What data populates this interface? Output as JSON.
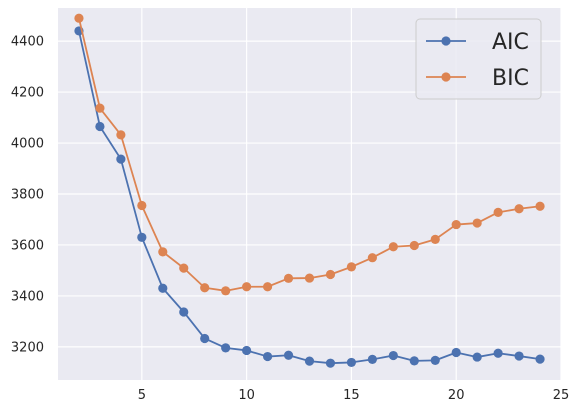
{
  "chart_data": {
    "type": "line",
    "title": "",
    "xlabel": "",
    "ylabel": "",
    "xlim": [
      1,
      25
    ],
    "ylim": [
      3070,
      4530
    ],
    "xticks": [
      5,
      10,
      15,
      20,
      25
    ],
    "yticks": [
      3200,
      3400,
      3600,
      3800,
      4000,
      4200,
      4400
    ],
    "grid": true,
    "legend_position": "top-right",
    "x": [
      2,
      3,
      4,
      5,
      6,
      7,
      8,
      9,
      10,
      11,
      12,
      13,
      14,
      15,
      16,
      17,
      18,
      19,
      20,
      21,
      22,
      23,
      24
    ],
    "series": [
      {
        "name": "AIC",
        "color": "#4c72b0",
        "values": [
          4440,
          4065,
          3937,
          3630,
          3430,
          3337,
          3233,
          3196,
          3186,
          3162,
          3167,
          3144,
          3136,
          3139,
          3151,
          3166,
          3145,
          3147,
          3178,
          3160,
          3175,
          3164,
          3152
        ]
      },
      {
        "name": "BIC",
        "color": "#dd8452",
        "values": [
          4490,
          4137,
          4032,
          3755,
          3573,
          3509,
          3432,
          3420,
          3436,
          3436,
          3469,
          3470,
          3484,
          3514,
          3550,
          3593,
          3598,
          3622,
          3680,
          3686,
          3728,
          3742,
          3752
        ]
      }
    ]
  }
}
